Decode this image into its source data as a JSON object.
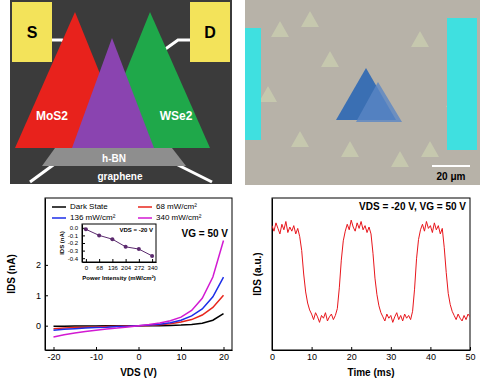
{
  "schematic": {
    "source": "S",
    "drain": "D",
    "left_flake": "MoS2",
    "right_flake": "WSe2",
    "dielectric": "h-BN",
    "gate": "graphene"
  },
  "micrograph": {
    "scale_bar": "20 μm"
  },
  "chart_data": [
    {
      "type": "line",
      "x": [
        -20,
        -17.5,
        -15,
        -12.5,
        -10,
        -7.5,
        -5,
        -2.5,
        0,
        2.5,
        5,
        7.5,
        10,
        12.5,
        15,
        17.5,
        20
      ],
      "series": [
        {
          "name": "Dark State",
          "color": "#000000",
          "values": [
            -0.02,
            -0.02,
            -0.01,
            -0.01,
            -0.01,
            0,
            0,
            0,
            0,
            0,
            0,
            0.01,
            0.02,
            0.04,
            0.08,
            0.18,
            0.4
          ]
        },
        {
          "name": "68 mW/cm²",
          "color": "#e8261c",
          "values": [
            -0.1,
            -0.08,
            -0.06,
            -0.05,
            -0.04,
            -0.03,
            -0.02,
            -0.01,
            0,
            0.01,
            0.03,
            0.06,
            0.12,
            0.2,
            0.35,
            0.6,
            1.0
          ]
        },
        {
          "name": "136 mW/cm²",
          "color": "#1c2ee8",
          "values": [
            -0.15,
            -0.12,
            -0.1,
            -0.08,
            -0.06,
            -0.05,
            -0.03,
            -0.02,
            0,
            0.02,
            0.05,
            0.1,
            0.18,
            0.32,
            0.55,
            0.95,
            1.6
          ]
        },
        {
          "name": "340 mW/cm²",
          "color": "#d21ad2",
          "values": [
            -0.37,
            -0.3,
            -0.24,
            -0.19,
            -0.15,
            -0.11,
            -0.08,
            -0.04,
            0,
            0.04,
            0.09,
            0.16,
            0.28,
            0.5,
            0.9,
            1.6,
            2.8
          ]
        }
      ],
      "xlim": [
        -22,
        22
      ],
      "ylim": [
        -0.8,
        4.2
      ],
      "xticks": [
        -20,
        -10,
        0,
        10,
        20
      ],
      "yticks": [
        0,
        1,
        2
      ],
      "x_label": "VDS (V)",
      "y_label": "IDS (nA)",
      "annotation": "VG = 50 V",
      "legend": "top"
    },
    {
      "type": "line",
      "x": [
        0,
        68,
        136,
        204,
        272,
        340
      ],
      "values": [
        -0.02,
        -0.1,
        -0.15,
        -0.25,
        -0.28,
        -0.37
      ],
      "color": "#5b2a6e",
      "marker": "circle",
      "xlim": [
        -20,
        360
      ],
      "ylim": [
        -0.45,
        0.05
      ],
      "xticks": [
        0,
        68,
        136,
        204,
        272,
        340
      ],
      "yticks": [
        {
          "value": 0,
          "label": "0.0"
        },
        -0.1,
        -0.2,
        -0.3,
        -0.4
      ],
      "x_label": "Power Intensity (mW/cm²)",
      "y_label": "IDS (nA)",
      "annotation": "VDS = -20 V"
    },
    {
      "type": "line",
      "x": [
        0,
        0.5,
        1,
        1.5,
        2,
        2.5,
        3,
        3.5,
        4,
        4.5,
        5,
        5.5,
        6,
        6.5,
        7,
        7.5,
        8,
        8.5,
        9,
        9.5,
        10,
        10.5,
        11,
        11.5,
        12,
        12.5,
        13,
        13.5,
        14,
        14.5,
        15,
        15.5,
        16,
        16.5,
        17,
        17.5,
        18,
        18.5,
        19,
        19.5,
        20,
        20.5,
        21,
        21.5,
        22,
        22.5,
        23,
        23.5,
        24,
        24.5,
        25,
        25.5,
        26,
        26.5,
        27,
        27.5,
        28,
        28.5,
        29,
        29.5,
        30,
        30.5,
        31,
        31.5,
        32,
        32.5,
        33,
        33.5,
        34,
        34.5,
        35,
        35.5,
        36,
        36.5,
        37,
        37.5,
        38,
        38.5,
        39,
        39.5,
        40,
        40.5,
        41,
        41.5,
        42,
        42.5,
        43,
        43.5,
        44,
        44.5,
        45,
        45.5,
        46,
        46.5,
        47,
        47.5,
        48,
        48.5,
        49,
        49.5,
        50
      ],
      "values": [
        0.9,
        0.86,
        0.92,
        0.88,
        0.84,
        0.91,
        0.87,
        0.93,
        0.85,
        0.89,
        0.86,
        0.9,
        0.84,
        0.88,
        0.82,
        0.72,
        0.55,
        0.42,
        0.34,
        0.29,
        0.26,
        0.22,
        0.27,
        0.24,
        0.2,
        0.25,
        0.23,
        0.27,
        0.21,
        0.24,
        0.26,
        0.22,
        0.25,
        0.3,
        0.45,
        0.65,
        0.79,
        0.86,
        0.91,
        0.87,
        0.94,
        0.89,
        0.86,
        0.92,
        0.88,
        0.93,
        0.87,
        0.9,
        0.85,
        0.89,
        0.84,
        0.7,
        0.52,
        0.4,
        0.32,
        0.27,
        0.24,
        0.21,
        0.26,
        0.23,
        0.25,
        0.2,
        0.24,
        0.27,
        0.22,
        0.25,
        0.21,
        0.26,
        0.23,
        0.25,
        0.22,
        0.28,
        0.44,
        0.66,
        0.8,
        0.87,
        0.91,
        0.86,
        0.93,
        0.88,
        0.9,
        0.85,
        0.92,
        0.87,
        0.9,
        0.84,
        0.88,
        0.74,
        0.56,
        0.41,
        0.33,
        0.28,
        0.25,
        0.22,
        0.26,
        0.23,
        0.21,
        0.25,
        0.22,
        0.26,
        0.24
      ],
      "color": "#e8161c",
      "xlim": [
        0,
        50
      ],
      "ylim": [
        0,
        1.1
      ],
      "xticks": [
        0,
        10,
        20,
        30,
        40,
        50
      ],
      "x_label": "Time (ms)",
      "y_label": "IDS (a.u.)",
      "annotation": "VDS = -20 V, VG = 50 V",
      "tick_labels": "x"
    }
  ]
}
